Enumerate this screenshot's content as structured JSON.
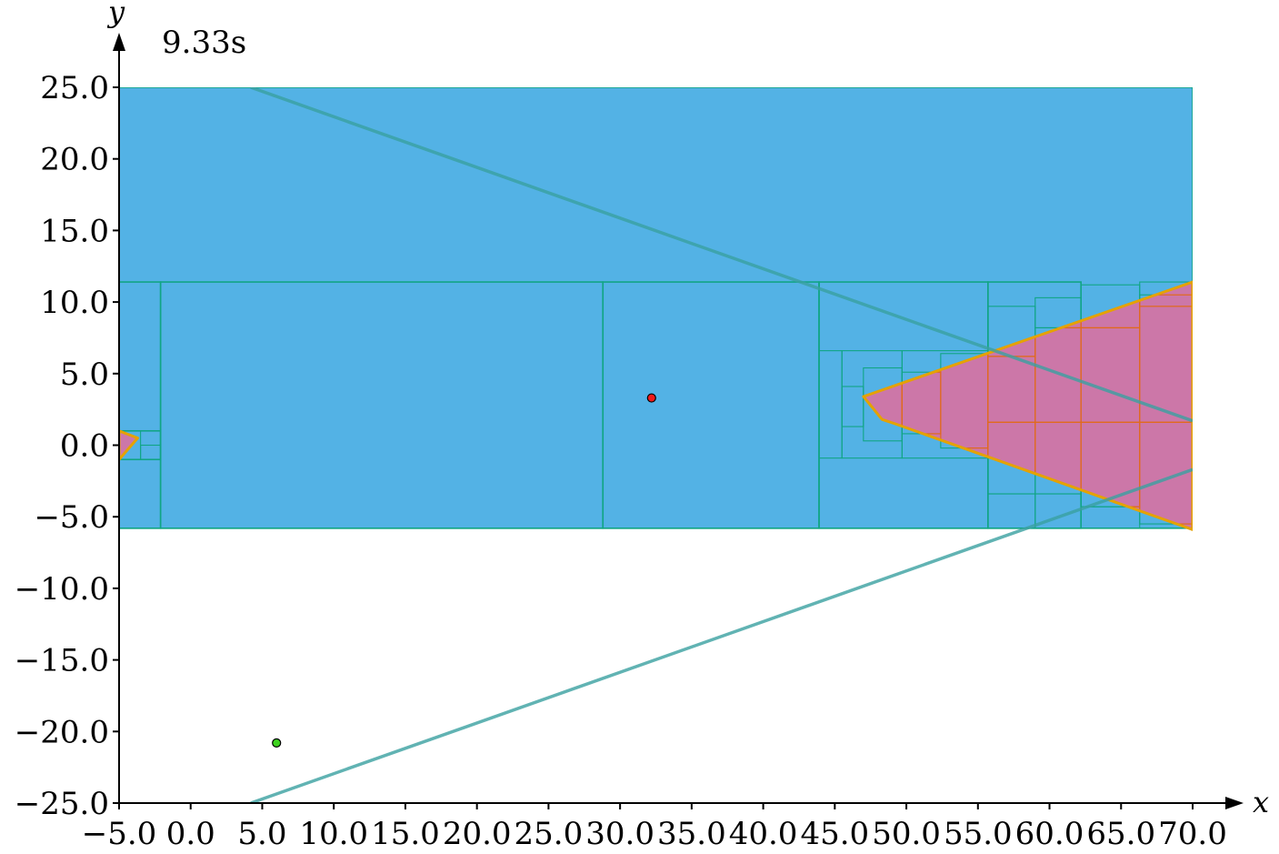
{
  "chart_data": {
    "type": "scatter",
    "xlabel": "x",
    "ylabel": "y",
    "xlim": [
      -5.0,
      70.0
    ],
    "ylim": [
      -25.0,
      25.0
    ],
    "xticks": [
      -5.0,
      0.0,
      5.0,
      10.0,
      15.0,
      20.0,
      25.0,
      30.0,
      35.0,
      40.0,
      45.0,
      50.0,
      55.0,
      60.0,
      65.0,
      70.0
    ],
    "yticks": [
      -25.0,
      -20.0,
      -15.0,
      -10.0,
      -5.0,
      0.0,
      5.0,
      10.0,
      15.0,
      20.0,
      25.0
    ],
    "xtick_labels": [
      "−5.0",
      "0.0",
      "5.0",
      "10.0",
      "15.0",
      "20.0",
      "25.0",
      "30.0",
      "35.0",
      "40.0",
      "45.0",
      "50.0",
      "55.0",
      "60.0",
      "65.0",
      "70.0"
    ],
    "ytick_labels": [
      "−25.0",
      "−20.0",
      "−15.0",
      "−10.0",
      "−5.0",
      "0.0",
      "5.0",
      "10.0",
      "15.0",
      "20.0",
      "25.0"
    ],
    "annotation": "9.33s",
    "colors": {
      "region_fill": "#53b2e5",
      "grid_edge": "#11a585",
      "wedge_fill": "#cc77a8",
      "wedge_edge": "#e06a1c",
      "wedge_outline": "#e5a200",
      "guide_line": "#3aa0a0",
      "red_point": "#f01a1a",
      "green_point": "#3dd21e"
    },
    "main_cells": [
      [
        -5.0,
        -5.8,
        70.0,
        25.0
      ],
      [
        -5.0,
        -5.8,
        -2.1,
        11.4
      ],
      [
        -2.1,
        -5.8,
        28.8,
        11.4
      ],
      [
        28.8,
        -5.8,
        43.9,
        11.4
      ],
      [
        43.9,
        -5.8,
        55.7,
        11.4
      ],
      [
        55.7,
        -5.8,
        62.2,
        11.4
      ],
      [
        -5.0,
        -1.0,
        -2.1,
        1.0
      ]
    ],
    "subcells": [
      [
        43.9,
        -0.9,
        45.5,
        6.6
      ],
      [
        45.5,
        -0.9,
        49.7,
        6.6
      ],
      [
        45.5,
        1.3,
        47.0,
        4.1
      ],
      [
        47.0,
        0.3,
        49.7,
        5.4
      ],
      [
        49.7,
        -0.9,
        55.7,
        6.6
      ],
      [
        49.7,
        0.8,
        52.4,
        5.1
      ],
      [
        52.4,
        -0.2,
        55.7,
        6.4
      ],
      [
        55.7,
        1.6,
        59.0,
        6.2
      ],
      [
        55.7,
        -3.4,
        59.0,
        1.6
      ],
      [
        59.0,
        -3.4,
        62.2,
        1.6
      ],
      [
        59.0,
        1.6,
        62.2,
        8.2
      ],
      [
        62.2,
        1.6,
        66.3,
        8.2
      ],
      [
        62.2,
        -4.3,
        66.3,
        1.6
      ],
      [
        66.3,
        1.6,
        70.0,
        10.5
      ],
      [
        66.3,
        -5.5,
        70.0,
        1.6
      ],
      [
        62.2,
        8.2,
        66.3,
        11.2
      ],
      [
        66.3,
        9.7,
        70.0,
        11.4
      ],
      [
        62.2,
        -5.8,
        66.3,
        -4.3
      ],
      [
        55.7,
        6.2,
        59.0,
        9.7
      ],
      [
        59.0,
        8.2,
        62.2,
        10.3
      ],
      [
        55.7,
        -5.8,
        59.0,
        -3.4
      ],
      [
        59.0,
        -5.8,
        62.2,
        -3.4
      ],
      [
        -5.0,
        -1.0,
        -3.5,
        1.0
      ],
      [
        -3.5,
        -1.0,
        -2.1,
        0.0
      ]
    ],
    "wedges": [
      {
        "name": "right-wedge",
        "points": [
          [
            47.0,
            3.4
          ],
          [
            70.0,
            11.4
          ],
          [
            70.0,
            -5.9
          ],
          [
            49.2,
            1.5
          ],
          [
            48.3,
            1.8
          ]
        ]
      },
      {
        "name": "left-wedge",
        "points": [
          [
            -5.0,
            1.0
          ],
          [
            -3.7,
            0.5
          ],
          [
            -5.0,
            -1.0
          ]
        ]
      }
    ],
    "guide_lines": [
      {
        "name": "upper-guide-line",
        "points": [
          [
            4.2,
            25.0
          ],
          [
            70.0,
            1.7
          ]
        ]
      },
      {
        "name": "lower-guide-line",
        "points": [
          [
            4.2,
            -25.0
          ],
          [
            70.0,
            -1.7
          ]
        ]
      }
    ],
    "points": [
      {
        "name": "red-point",
        "x": 32.2,
        "y": 3.3,
        "color": "#f01a1a"
      },
      {
        "name": "green-point",
        "x": 6.0,
        "y": -20.8,
        "color": "#3dd21e"
      }
    ]
  }
}
